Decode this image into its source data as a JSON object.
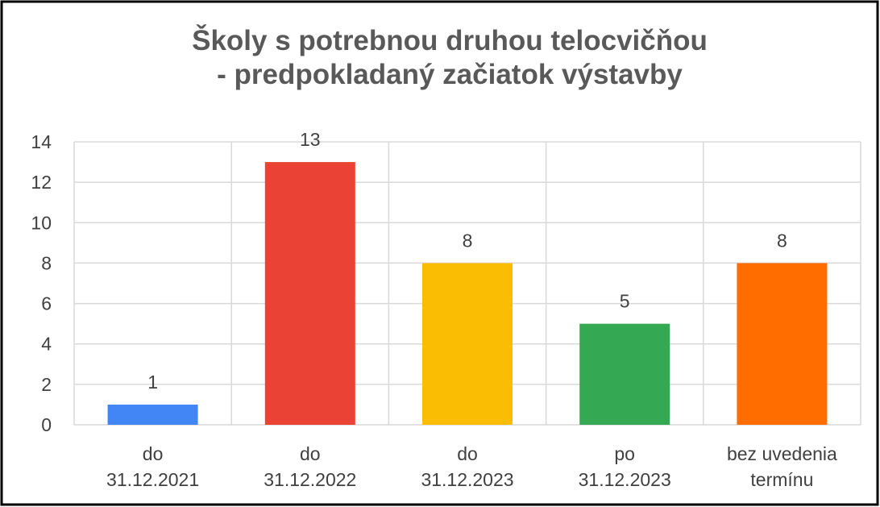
{
  "chart_data": {
    "type": "bar",
    "title": "Školy s potrebnou druhou telocvičňou\n- predpokladaný začiatok výstavby",
    "categories": [
      "do\n31.12.2021",
      "do\n31.12.2022",
      "do\n31.12.2023",
      "po\n31.12.2023",
      "bez uvedenia\ntermínu"
    ],
    "values": [
      1,
      13,
      8,
      5,
      8
    ],
    "colors": [
      "#4285f4",
      "#ea4335",
      "#fbbc04",
      "#34a853",
      "#ff6d01"
    ],
    "ylim": [
      0,
      14
    ],
    "yticks": [
      0,
      2,
      4,
      6,
      8,
      10,
      12,
      14
    ],
    "grid": true
  }
}
